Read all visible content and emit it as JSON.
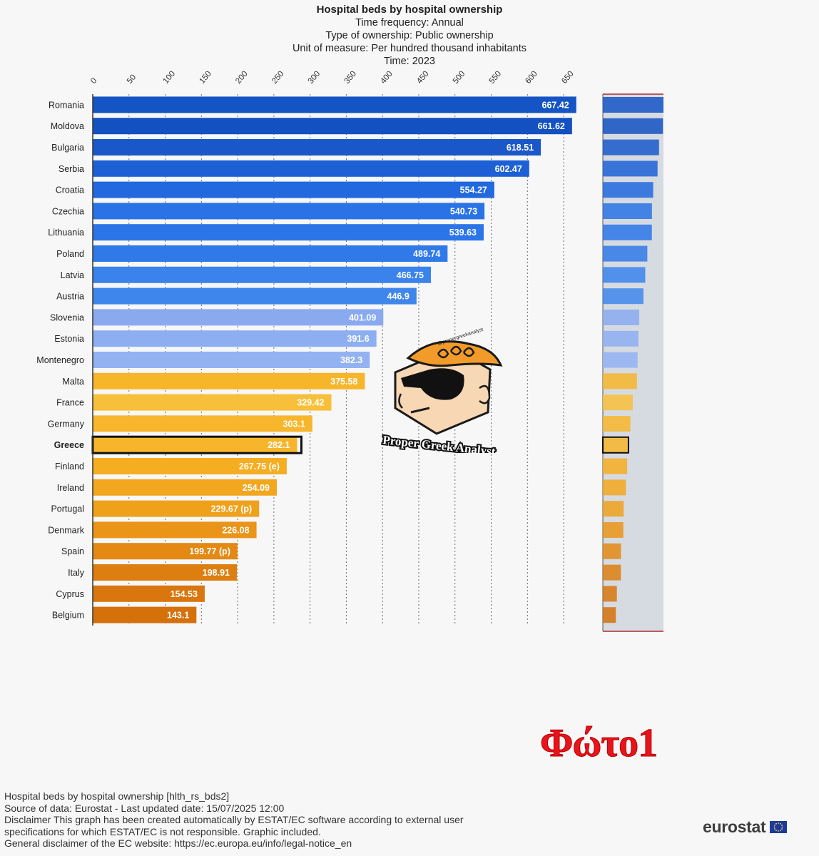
{
  "header": {
    "title": "Hospital beds by hospital ownership",
    "lines": [
      "Time frequency:  Annual",
      "Type of ownership:  Public ownership",
      "Unit of measure:  Per hundred thousand inhabitants",
      "Time:  2023"
    ]
  },
  "chart_data": {
    "type": "bar",
    "orientation": "horizontal",
    "highlight": "Greece",
    "xlim": [
      0,
      650
    ],
    "ticks": [
      "0",
      "50",
      "100",
      "150",
      "200",
      "250",
      "300",
      "350",
      "400",
      "450",
      "500",
      "550",
      "600",
      "650"
    ],
    "bars": [
      {
        "category": "Romania",
        "value": 667.42,
        "label": "667.42",
        "color": "#1554c4"
      },
      {
        "category": "Moldova",
        "value": 661.62,
        "label": "661.62",
        "color": "#1351c0"
      },
      {
        "category": "Bulgaria",
        "value": 618.51,
        "label": "618.51",
        "color": "#1a58c9"
      },
      {
        "category": "Serbia",
        "value": 602.47,
        "label": "602.47",
        "color": "#1d60d6"
      },
      {
        "category": "Croatia",
        "value": 554.27,
        "label": "554.27",
        "color": "#2268de"
      },
      {
        "category": "Czechia",
        "value": 540.73,
        "label": "540.73",
        "color": "#2a73e6"
      },
      {
        "category": "Lithuania",
        "value": 539.63,
        "label": "539.63",
        "color": "#2c75e8"
      },
      {
        "category": "Poland",
        "value": 489.74,
        "label": "489.74",
        "color": "#3079e8"
      },
      {
        "category": "Latvia",
        "value": 466.75,
        "label": "466.75",
        "color": "#3a83ec"
      },
      {
        "category": "Austria",
        "value": 446.9,
        "label": "446.9",
        "color": "#3f86ec"
      },
      {
        "category": "Slovenia",
        "value": 401.09,
        "label": "401.09",
        "color": "#8aaaf0"
      },
      {
        "category": "Estonia",
        "value": 391.6,
        "label": "391.6",
        "color": "#8eaef2"
      },
      {
        "category": "Montenegro",
        "value": 382.3,
        "label": "382.3",
        "color": "#93b2f2"
      },
      {
        "category": "Malta",
        "value": 375.58,
        "label": "375.58",
        "color": "#f7b52a"
      },
      {
        "category": "France",
        "value": 329.42,
        "label": "329.42",
        "color": "#f8bf3a"
      },
      {
        "category": "Germany",
        "value": 303.1,
        "label": "303.1",
        "color": "#f7b62c"
      },
      {
        "category": "Greece",
        "value": 282.1,
        "label": "282.1",
        "color": "#f7b52b"
      },
      {
        "category": "Finland",
        "value": 267.75,
        "label": "267.75 (e)",
        "color": "#f5ad22"
      },
      {
        "category": "Ireland",
        "value": 254.09,
        "label": "254.09",
        "color": "#f2a71f"
      },
      {
        "category": "Portugal",
        "value": 229.67,
        "label": "229.67 (p)",
        "color": "#f0a11c"
      },
      {
        "category": "Denmark",
        "value": 226.08,
        "label": "226.08",
        "color": "#ea9418"
      },
      {
        "category": "Spain",
        "value": 199.77,
        "label": "199.77 (p)",
        "color": "#e38914"
      },
      {
        "category": "Italy",
        "value": 198.91,
        "label": "198.91",
        "color": "#dc7f10"
      },
      {
        "category": "Cyprus",
        "value": 154.53,
        "label": "154.53",
        "color": "#d9760d"
      },
      {
        "category": "Belgium",
        "value": 143.1,
        "label": "143.1",
        "color": "#d5700b"
      }
    ]
  },
  "overlay": {
    "watermark_text": "Proper Greek Analyst",
    "watermark_handle": "@propergreekanalyst",
    "photo_label": "Φώτο1"
  },
  "footer": {
    "lines": [
      "Hospital beds by hospital ownership [hlth_rs_bds2]",
      "Source of data: Eurostat - Last updated date: 15/07/2025 12:00",
      "Disclaimer This graph has been created automatically by ESTAT/EC software according to external user",
      "specifications for which ESTAT/EC is not responsible. Graphic included.",
      "General disclaimer of the EC website: https://ec.europa.eu/info/legal-notice_en"
    ],
    "brand": "eurostat"
  }
}
